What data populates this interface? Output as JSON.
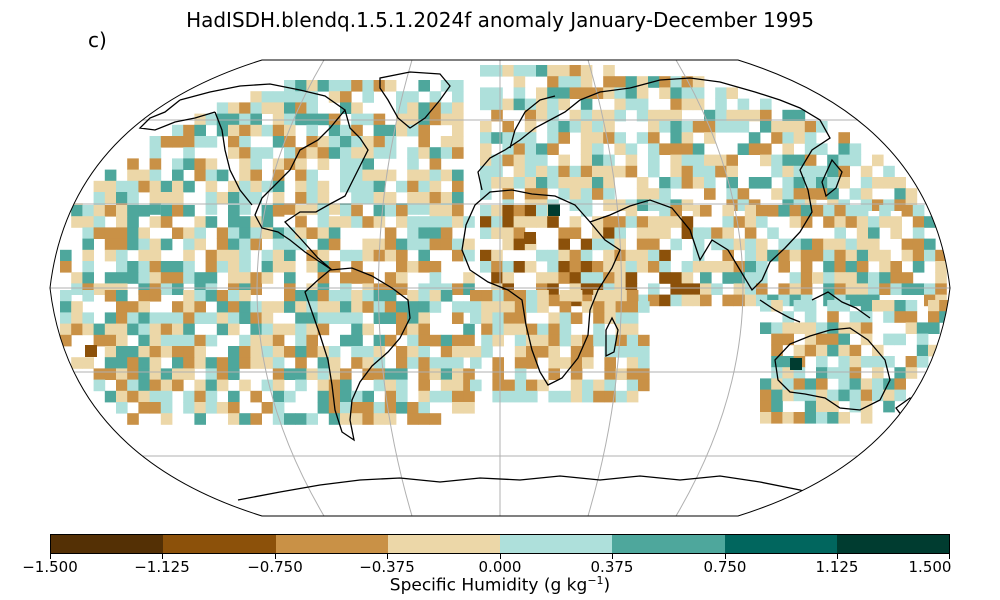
{
  "title": "HadISDH.blendq.1.5.1.2024f anomaly January-December 1995",
  "panel_label": "c)",
  "colorbar": {
    "label_prefix": "Specific Humidity (g kg",
    "label_exp": "−1",
    "label_suffix": ")",
    "ticks": [
      "−1.500",
      "−1.125",
      "−0.750",
      "−0.375",
      "0.000",
      "0.375",
      "0.750",
      "1.125",
      "1.500"
    ],
    "colors": [
      "#543005",
      "#8c510a",
      "#c99146",
      "#ecd7a8",
      "#aee0db",
      "#4ea79c",
      "#01665e",
      "#003c30"
    ]
  },
  "map": {
    "projection": "Robinson",
    "gridlines": true,
    "land_colors": {
      "dry_light": "#ecd7a8",
      "dry_mid": "#c99146",
      "dry_dark": "#8c510a",
      "wet_light": "#aee0db",
      "wet_mid": "#4ea79c",
      "wet_dark": "#01665e",
      "wet_darkest": "#003c30"
    }
  }
}
